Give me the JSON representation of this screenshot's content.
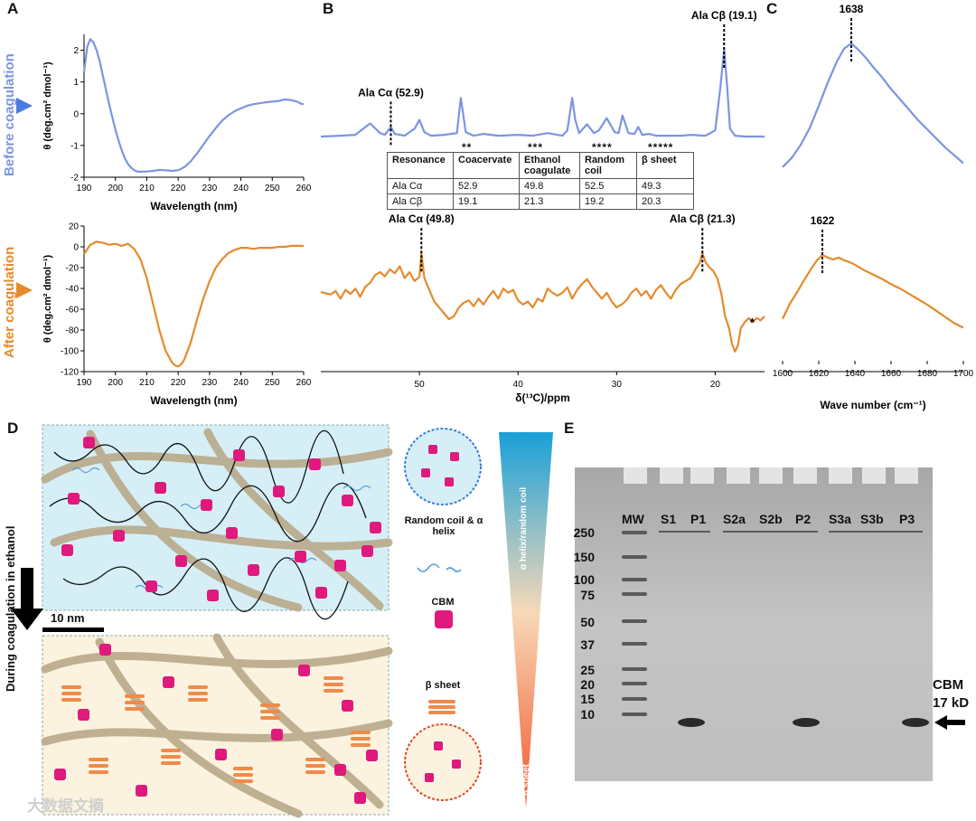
{
  "panels": {
    "A": "A",
    "B": "B",
    "C": "C",
    "D": "D",
    "E": "E"
  },
  "side_labels": {
    "before": "Before coagulation",
    "after": "After coagulation",
    "ethanol": "During coagulation in ethanol"
  },
  "colors": {
    "before": "#7b95e2",
    "after": "#e58a2c",
    "gel_bg": "#b9b9b9",
    "cbm": "#e0197d",
    "fiber": "#c4b49a"
  },
  "chart_data": [
    {
      "id": "A-before",
      "type": "line",
      "title": "",
      "xlabel": "Wavelength (nm)",
      "ylabel": "θ (deg.cm² dmol⁻¹)",
      "xlim": [
        190,
        260
      ],
      "ylim": [
        -2,
        2.5
      ],
      "xticks": [
        "190",
        "200",
        "210",
        "220",
        "230",
        "240",
        "250",
        "260"
      ],
      "yticks": [
        "2",
        "1",
        "0",
        "-1",
        "-2"
      ],
      "series": [
        {
          "name": "Before coagulation",
          "x": [
            190,
            191,
            192,
            193,
            194,
            195,
            196,
            197,
            198,
            199,
            200,
            201,
            202,
            203,
            204,
            205,
            206,
            207,
            208,
            209,
            210,
            212,
            214,
            216,
            218,
            220,
            222,
            224,
            226,
            228,
            230,
            232,
            234,
            236,
            238,
            240,
            242,
            244,
            246,
            248,
            250,
            252,
            254,
            256,
            258,
            259,
            260
          ],
          "y": [
            1.3,
            2.1,
            2.35,
            2.25,
            2.0,
            1.65,
            1.2,
            0.75,
            0.3,
            -0.1,
            -0.5,
            -0.85,
            -1.15,
            -1.4,
            -1.58,
            -1.7,
            -1.78,
            -1.82,
            -1.83,
            -1.82,
            -1.82,
            -1.8,
            -1.77,
            -1.78,
            -1.8,
            -1.78,
            -1.68,
            -1.5,
            -1.25,
            -0.98,
            -0.7,
            -0.45,
            -0.22,
            -0.05,
            0.08,
            0.17,
            0.25,
            0.3,
            0.33,
            0.36,
            0.38,
            0.4,
            0.45,
            0.43,
            0.38,
            0.32,
            0.3
          ]
        }
      ]
    },
    {
      "id": "A-after",
      "type": "line",
      "title": "",
      "xlabel": "Wavelength (nm)",
      "ylabel": "θ (deg.cm² dmol⁻¹)",
      "xlim": [
        190,
        260
      ],
      "ylim": [
        -120,
        20
      ],
      "xticks": [
        "190",
        "200",
        "210",
        "220",
        "230",
        "240",
        "250",
        "260"
      ],
      "yticks": [
        "20",
        "0",
        "-20",
        "-40",
        "-60",
        "-80",
        "-100",
        "-120"
      ],
      "series": [
        {
          "name": "After coagulation",
          "x": [
            190,
            192,
            194,
            196,
            198,
            200,
            202,
            204,
            206,
            208,
            210,
            212,
            214,
            216,
            218,
            219,
            220,
            221,
            222,
            224,
            226,
            228,
            230,
            232,
            234,
            236,
            238,
            240,
            242,
            244,
            246,
            248,
            250,
            252,
            254,
            256,
            258,
            260
          ],
          "y": [
            -7,
            2,
            5,
            4,
            2,
            3,
            1,
            3,
            -2,
            -12,
            -30,
            -55,
            -80,
            -100,
            -111,
            -114,
            -115,
            -113,
            -108,
            -92,
            -70,
            -50,
            -33,
            -20,
            -12,
            -6,
            -3,
            -1,
            -1,
            -2,
            -1,
            -1,
            -1,
            0,
            0,
            1,
            1,
            1
          ]
        }
      ]
    },
    {
      "id": "B-before",
      "type": "line",
      "title": "",
      "xlabel": "δ(¹³C)/ppm",
      "ylabel": "",
      "xlim": [
        60,
        15
      ],
      "ylim": [
        0,
        1
      ],
      "annotations": [
        {
          "text": "Ala Cα (52.9)",
          "x": 52.9
        },
        {
          "text": "Ala Cβ (19.1)",
          "x": 19.1
        }
      ],
      "series": [
        {
          "name": "Coacervate",
          "x": [
            60,
            58,
            56.5,
            55,
            54,
            53.5,
            52.9,
            52.5,
            51.5,
            50.5,
            50,
            49.5,
            48.8,
            47.5,
            46.2,
            45.8,
            45.3,
            44.5,
            43.5,
            42,
            40,
            38.5,
            37,
            35.5,
            35,
            34.5,
            34.2,
            33.8,
            33,
            32.3,
            31.8,
            31,
            30.2,
            29.8,
            29.4,
            28.8,
            28.2,
            27.8,
            27.4,
            26.7,
            26,
            25.6,
            25.2,
            24.5,
            23.5,
            22.5,
            21,
            20,
            19.5,
            19.1,
            18.8,
            18.5,
            18,
            17,
            16,
            15
          ],
          "y": [
            0.01,
            0.02,
            0.03,
            0.16,
            0.05,
            0.03,
            0.12,
            0.04,
            0.02,
            0.1,
            0.2,
            0.06,
            0.02,
            0.03,
            0.05,
            0.45,
            0.06,
            0.02,
            0.04,
            0.02,
            0.03,
            0.02,
            0.05,
            0.02,
            0.08,
            0.45,
            0.2,
            0.05,
            0.15,
            0.05,
            0.08,
            0.22,
            0.06,
            0.05,
            0.25,
            0.05,
            0.04,
            0.12,
            0.03,
            0.04,
            0.02,
            0.02,
            0.02,
            0.02,
            0.02,
            0.03,
            0.02,
            0.08,
            0.55,
            1.0,
            0.6,
            0.1,
            0.02,
            0.01,
            0.01,
            0.01
          ]
        }
      ]
    },
    {
      "id": "B-after",
      "type": "line",
      "title": "",
      "xlabel": "δ(¹³C)/ppm",
      "ylabel": "",
      "xlim": [
        60,
        15
      ],
      "ylim": [
        -1,
        1
      ],
      "xticks": [
        "50",
        "40",
        "30",
        "20"
      ],
      "annotations": [
        {
          "text": "Ala Cα (49.8)",
          "x": 49.8
        },
        {
          "text": "Ala Cβ (21.3)",
          "x": 21.3
        },
        {
          "text": "*",
          "x": 16.8
        }
      ],
      "series": [
        {
          "name": "Ethanol coagulate",
          "x": [
            60,
            59,
            58.5,
            58,
            57.5,
            57,
            56.5,
            56,
            55.5,
            55,
            54.5,
            54,
            53.5,
            53,
            52.5,
            52,
            51.5,
            51,
            50.5,
            50,
            49.8,
            49.5,
            49,
            48.5,
            48,
            47.5,
            47,
            46.5,
            46,
            45.5,
            45,
            44.5,
            44,
            43.5,
            43,
            42.5,
            42,
            41.5,
            41,
            40.5,
            40,
            39.5,
            39,
            38.5,
            38,
            37.5,
            37,
            36.5,
            36,
            35.5,
            35,
            34.5,
            34,
            33.5,
            33,
            32.5,
            32,
            31.5,
            31,
            30.5,
            30,
            29.5,
            29,
            28.5,
            28,
            27.5,
            27,
            26.5,
            26,
            25.5,
            25,
            24.5,
            24,
            23.5,
            23,
            22.5,
            22,
            21.6,
            21.3,
            21,
            20.7,
            20.2,
            19.8,
            19.4,
            19,
            18.6,
            18.3,
            18,
            17.7,
            17.4,
            17,
            16.6,
            16.2,
            15.8,
            15.4,
            15
          ],
          "y": [
            0.06,
            0.02,
            0.08,
            -0.05,
            0.1,
            0.03,
            0.12,
            -0.02,
            0.15,
            0.22,
            0.35,
            0.4,
            0.33,
            0.45,
            0.38,
            0.5,
            0.3,
            0.4,
            0.25,
            0.32,
            0.72,
            0.3,
            0.1,
            -0.1,
            -0.2,
            -0.3,
            -0.4,
            -0.35,
            -0.2,
            -0.12,
            -0.08,
            -0.18,
            -0.05,
            -0.15,
            -0.02,
            0.08,
            -0.05,
            0.12,
            0.05,
            0.1,
            -0.08,
            -0.15,
            -0.1,
            -0.2,
            -0.05,
            -0.1,
            0.12,
            0.05,
            0.0,
            0.05,
            0.14,
            -0.05,
            0.1,
            0.2,
            0.28,
            0.15,
            0.05,
            -0.05,
            0.05,
            -0.1,
            -0.2,
            -0.15,
            -0.08,
            0.05,
            0.12,
            0.0,
            0.08,
            -0.05,
            0.1,
            0.18,
            0.05,
            -0.05,
            0.1,
            0.2,
            0.25,
            0.3,
            0.45,
            0.55,
            0.72,
            0.58,
            0.5,
            0.42,
            0.3,
            0.05,
            -0.35,
            -0.55,
            -0.82,
            -0.95,
            -0.85,
            -0.55,
            -0.45,
            -0.38,
            -0.45,
            -0.38,
            -0.42,
            -0.35
          ]
        }
      ]
    },
    {
      "id": "C-before",
      "type": "line",
      "title": "",
      "xlabel": "Wave number (cm⁻¹)",
      "ylabel": "",
      "xlim": [
        1600,
        1700
      ],
      "ylim": [
        0,
        1
      ],
      "annotations": [
        {
          "text": "1638",
          "x": 1638
        }
      ],
      "series": [
        {
          "name": "Before coagulation",
          "x": [
            1600,
            1605,
            1610,
            1615,
            1620,
            1625,
            1630,
            1634,
            1638,
            1642,
            1646,
            1650,
            1655,
            1660,
            1665,
            1670,
            1675,
            1680,
            1685,
            1690,
            1695,
            1700
          ],
          "y": [
            0.05,
            0.12,
            0.22,
            0.35,
            0.52,
            0.7,
            0.86,
            0.96,
            1.0,
            0.95,
            0.89,
            0.82,
            0.74,
            0.65,
            0.57,
            0.49,
            0.41,
            0.34,
            0.27,
            0.2,
            0.14,
            0.08
          ]
        }
      ]
    },
    {
      "id": "C-after",
      "type": "line",
      "title": "",
      "xlabel": "Wave number (cm⁻¹)",
      "ylabel": "",
      "xlim": [
        1600,
        1700
      ],
      "ylim": [
        0,
        1
      ],
      "xticks": [
        "1600",
        "1620",
        "1640",
        "1660",
        "1680",
        "1700"
      ],
      "annotations": [
        {
          "text": "1622",
          "x": 1622
        }
      ],
      "series": [
        {
          "name": "After coagulation",
          "x": [
            1600,
            1604,
            1608,
            1612,
            1616,
            1619,
            1622,
            1625,
            1628,
            1631,
            1634,
            1637,
            1640,
            1645,
            1650,
            1655,
            1660,
            1665,
            1670,
            1675,
            1680,
            1685,
            1690,
            1695,
            1700
          ],
          "y": [
            0.28,
            0.45,
            0.58,
            0.72,
            0.85,
            0.94,
            1.0,
            0.97,
            0.95,
            0.97,
            0.94,
            0.92,
            0.89,
            0.83,
            0.78,
            0.73,
            0.67,
            0.62,
            0.56,
            0.5,
            0.44,
            0.37,
            0.3,
            0.23,
            0.18
          ]
        }
      ]
    }
  ],
  "nmr_table": {
    "stars": [
      "**",
      "***",
      "****",
      "*****"
    ],
    "headers": [
      "Resonance",
      "Coacervate",
      "Ethanol coagulate",
      "Random coil",
      "β sheet"
    ],
    "rows": [
      [
        "Ala Cα",
        "52.9",
        "49.8",
        "52.5",
        "49.3"
      ],
      [
        "Ala Cβ",
        "19.1",
        "21.3",
        "19.2",
        "20.3"
      ]
    ]
  },
  "schematic": {
    "scale_bar": "10 nm",
    "legend": {
      "coil": "Random coil & α helix",
      "cbm": "CBM",
      "sheet": "β sheet"
    },
    "gradient": {
      "top": "α helix/random coil",
      "bottom": "β sheet"
    }
  },
  "gel": {
    "lanes": [
      "MW",
      "S1",
      "P1",
      "S2a",
      "S2b",
      "P2",
      "S3a",
      "S3b",
      "P3"
    ],
    "markers": [
      "250",
      "150",
      "100",
      "75",
      "50",
      "37",
      "25",
      "20",
      "15",
      "10"
    ],
    "band_label": "CBM",
    "band_size": "17 kD"
  },
  "watermark": "大数据文摘"
}
